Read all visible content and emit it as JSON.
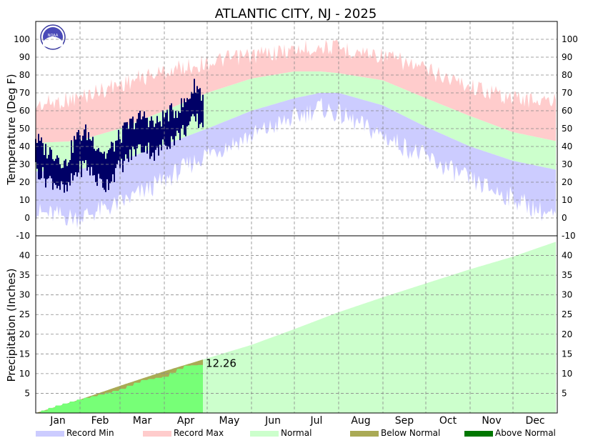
{
  "chart_data": [
    {
      "type": "area",
      "panel": "temperature",
      "title": "ATLANTIC CITY, NJ - 2025",
      "ylabel": "Temperature (Deg F)",
      "ylim": [
        -10,
        110
      ],
      "yticks": [
        -10,
        0,
        10,
        20,
        30,
        40,
        50,
        60,
        70,
        80,
        90,
        100
      ],
      "grid": true,
      "normal_high": {
        "x_day": [
          1,
          30,
          60,
          91,
          121,
          152,
          182,
          200,
          213,
          244,
          274,
          305,
          335,
          365
        ],
        "values": [
          42,
          43,
          50,
          60,
          70,
          78,
          82,
          82,
          81,
          77,
          67,
          57,
          48,
          43
        ]
      },
      "normal_low": {
        "x_day": [
          1,
          30,
          60,
          91,
          121,
          152,
          182,
          200,
          213,
          244,
          274,
          305,
          335,
          365
        ],
        "values": [
          26,
          27,
          32,
          41,
          50,
          60,
          67,
          70,
          70,
          63,
          51,
          40,
          32,
          27
        ]
      },
      "record_high": {
        "x_day": [
          1,
          30,
          60,
          91,
          121,
          152,
          182,
          200,
          213,
          244,
          274,
          305,
          335,
          365
        ],
        "values": [
          68,
          72,
          80,
          87,
          92,
          96,
          99,
          101,
          100,
          96,
          88,
          79,
          72,
          70
        ]
      },
      "record_low": {
        "x_day": [
          1,
          30,
          60,
          91,
          121,
          152,
          182,
          200,
          213,
          244,
          274,
          305,
          335,
          365
        ],
        "values": [
          -3,
          -6,
          2,
          15,
          30,
          40,
          50,
          56,
          52,
          40,
          28,
          15,
          5,
          -6
        ]
      },
      "observed_2025": {
        "x_day": [
          1,
          8,
          15,
          22,
          29,
          36,
          43,
          50,
          57,
          64,
          71,
          78,
          85,
          92,
          99,
          106,
          113,
          118
        ],
        "high": [
          45,
          38,
          36,
          30,
          45,
          48,
          42,
          35,
          42,
          50,
          55,
          57,
          52,
          58,
          60,
          65,
          75,
          68
        ],
        "low": [
          28,
          22,
          20,
          14,
          25,
          30,
          22,
          18,
          26,
          32,
          38,
          40,
          35,
          42,
          45,
          50,
          55,
          52
        ]
      }
    },
    {
      "type": "area",
      "panel": "precipitation",
      "ylabel": "Precipitation (Inches)",
      "ylim": [
        0,
        45
      ],
      "yticks": [
        5,
        10,
        15,
        20,
        25,
        30,
        35,
        40
      ],
      "grid": true,
      "normal_cumulative": {
        "x_day": [
          1,
          32,
          60,
          91,
          121,
          152,
          182,
          213,
          244,
          274,
          305,
          335,
          365
        ],
        "values": [
          0,
          3.4,
          6.9,
          10.6,
          13.9,
          17.3,
          21.3,
          25.6,
          29.4,
          32.9,
          36.5,
          39.7,
          43.5
        ]
      },
      "observed_cumulative": {
        "x_day": [
          1,
          15,
          32,
          45,
          60,
          75,
          91,
          105,
          118
        ],
        "values": [
          0,
          1.8,
          3.5,
          4.6,
          6.0,
          8.3,
          9.2,
          12.0,
          12.26
        ]
      },
      "annotation": "12.26"
    }
  ],
  "months": [
    "Jan",
    "Feb",
    "Mar",
    "Apr",
    "May",
    "Jun",
    "Jul",
    "Aug",
    "Sep",
    "Oct",
    "Nov",
    "Dec"
  ],
  "legend": [
    {
      "label": "Record Min",
      "color": "#ccccff"
    },
    {
      "label": "Record Max",
      "color": "#ffcccc"
    },
    {
      "label": "Normal",
      "color": "#ccffcc"
    },
    {
      "label": "Below Normal",
      "color": "#aaaa55"
    },
    {
      "label": "Above Normal",
      "color": "#007700"
    }
  ],
  "colors": {
    "record_min": "#ccccff",
    "record_max": "#ffcccc",
    "normal": "#ccffcc",
    "observed": "#000066",
    "obs_precip": "#77ff77",
    "below_normal": "#aaaa55",
    "above_normal": "#007700",
    "grid": "#888888"
  },
  "logo_text": "NOAA"
}
